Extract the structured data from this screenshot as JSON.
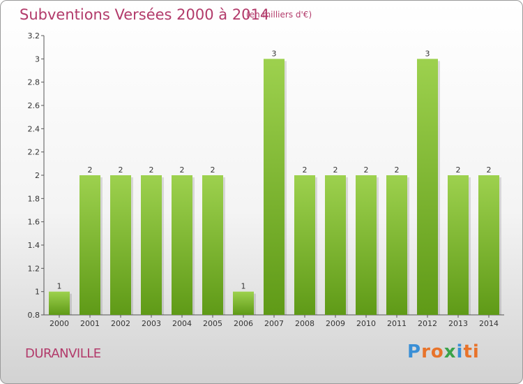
{
  "header": {
    "title": "Subventions Versées 2000 à 2014",
    "unit": "(en milliers d'€)"
  },
  "footer": {
    "commune": "DURANVILLE",
    "brand": "Proxiti"
  },
  "colors": {
    "title": "#b23a6a",
    "bar_top": "#9dd14e",
    "bar_bottom": "#5f9a17",
    "brand_letters": [
      "#3a8fd6",
      "#e8732a",
      "#e8732a",
      "#3aa34a",
      "#3a8fd6",
      "#e8732a",
      "#e8732a"
    ]
  },
  "chart_data": {
    "type": "bar",
    "categories": [
      "2000",
      "2001",
      "2002",
      "2003",
      "2004",
      "2005",
      "2006",
      "2007",
      "2008",
      "2009",
      "2010",
      "2011",
      "2012",
      "2013",
      "2014"
    ],
    "values": [
      1,
      2,
      2,
      2,
      2,
      2,
      1,
      3,
      2,
      2,
      2,
      2,
      3,
      2,
      2
    ],
    "data_labels": [
      "1",
      "2",
      "2",
      "2",
      "2",
      "2",
      "1",
      "3",
      "2",
      "2",
      "2",
      "2",
      "3",
      "2",
      "2"
    ],
    "yticks": [
      "0.8",
      "1",
      "1.2",
      "1.4",
      "1.6",
      "1.8",
      "2",
      "2.2",
      "2.4",
      "2.6",
      "2.8",
      "3",
      "3.2"
    ],
    "ylim": [
      0.8,
      3.2
    ],
    "grid": false,
    "legend": "none"
  }
}
